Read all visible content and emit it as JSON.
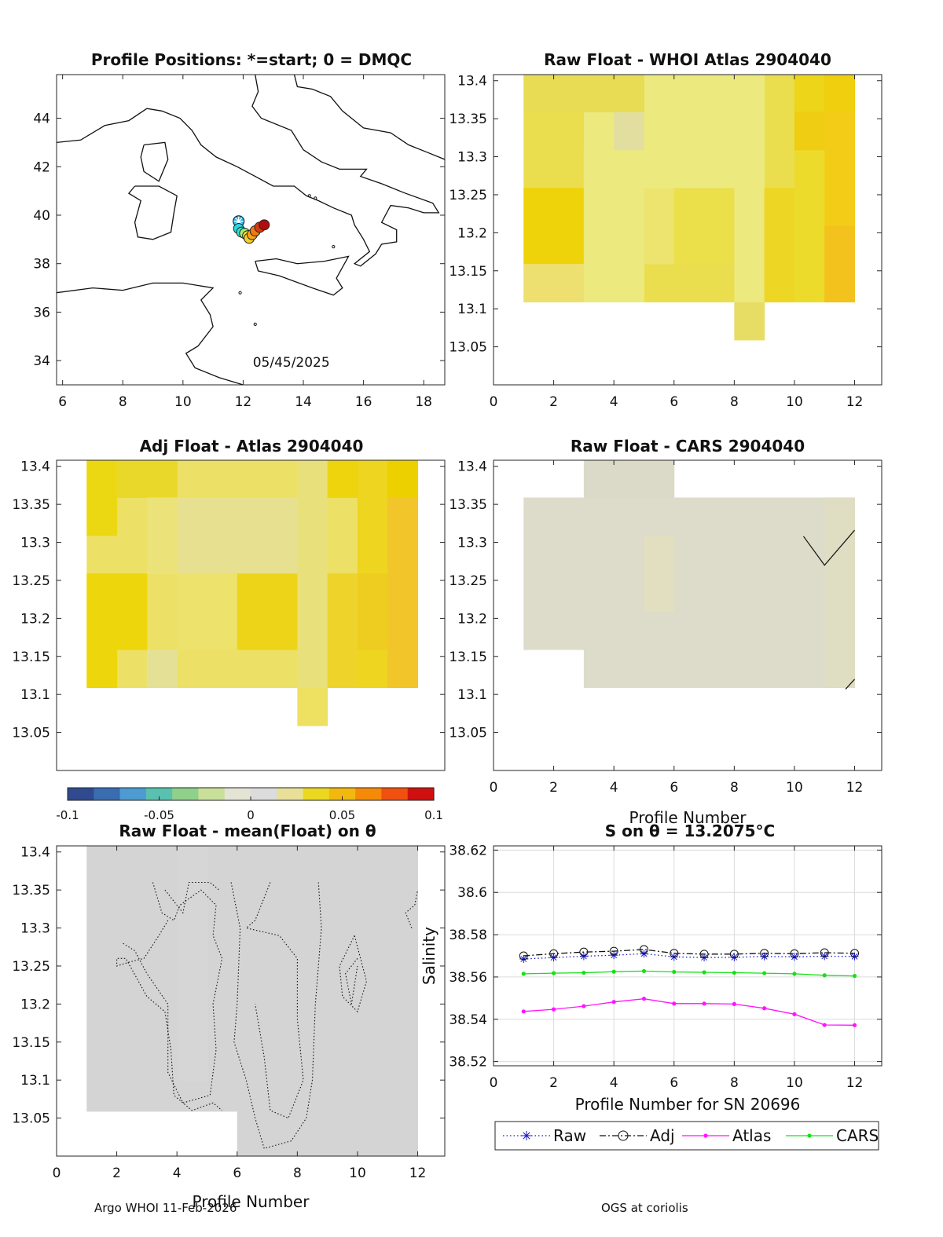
{
  "figure": {
    "footer_left": "Argo WHOI 11-Feb-2026",
    "footer_right": "OGS at coriolis",
    "colorbar": {
      "ticks": [
        "-0.1",
        "-0.05",
        "0",
        "0.05",
        "0.1"
      ],
      "range": [
        -0.1,
        0.1
      ]
    }
  },
  "chart_data": [
    {
      "id": "map",
      "type": "scatter",
      "title": "Profile Positions: *=start; 0 = DMQC",
      "annotation": "05/45/2025",
      "xlim": [
        5.8,
        18.7
      ],
      "ylim": [
        33,
        45.8
      ],
      "xticks": [
        "6",
        "8",
        "10",
        "12",
        "14",
        "16",
        "18"
      ],
      "yticks": [
        "34",
        "36",
        "38",
        "40",
        "42",
        "44"
      ],
      "points": [
        {
          "lon": 11.85,
          "lat": 39.75,
          "color": "#2ab4ee",
          "marker": "star"
        },
        {
          "lon": 11.85,
          "lat": 39.45,
          "color": "#22d8e6"
        },
        {
          "lon": 11.95,
          "lat": 39.3,
          "color": "#3fe0c8"
        },
        {
          "lon": 12.05,
          "lat": 39.25,
          "color": "#9ef070"
        },
        {
          "lon": 12.15,
          "lat": 39.15,
          "color": "#f5e32a"
        },
        {
          "lon": 12.2,
          "lat": 39.05,
          "color": "#f8cf22"
        },
        {
          "lon": 12.3,
          "lat": 39.2,
          "color": "#f7a21c"
        },
        {
          "lon": 12.4,
          "lat": 39.35,
          "color": "#f07a12"
        },
        {
          "lon": 12.55,
          "lat": 39.5,
          "color": "#d83a0e"
        },
        {
          "lon": 12.7,
          "lat": 39.6,
          "color": "#b00e0e"
        }
      ]
    },
    {
      "id": "raw_atlas",
      "type": "heatmap",
      "title": "Raw Float - WHOI Atlas  2904040",
      "xlim": [
        0,
        12.9
      ],
      "ylim": [
        13.0,
        13.408
      ],
      "xticks": [
        "0",
        "2",
        "4",
        "6",
        "8",
        "10",
        "12"
      ],
      "yticks": [
        "13.05",
        "13.1",
        "13.15",
        "13.2",
        "13.25",
        "13.3",
        "13.35",
        "13.4"
      ]
    },
    {
      "id": "adj_atlas",
      "type": "heatmap",
      "title": "Adj Float - Atlas  2904040",
      "xlim": [
        0,
        12.9
      ],
      "ylim": [
        13.0,
        13.408
      ],
      "xticks": [],
      "yticks": [
        "13.05",
        "13.1",
        "13.15",
        "13.2",
        "13.25",
        "13.3",
        "13.35",
        "13.4"
      ]
    },
    {
      "id": "raw_cars",
      "type": "heatmap",
      "title": "Raw Float - CARS  2904040",
      "xlabel": "Profile Number",
      "xlim": [
        0,
        12.9
      ],
      "ylim": [
        13.0,
        13.408
      ],
      "xticks": [
        "0",
        "2",
        "4",
        "6",
        "8",
        "10",
        "12"
      ],
      "yticks": [
        "13.05",
        "13.1",
        "13.15",
        "13.2",
        "13.25",
        "13.3",
        "13.35",
        "13.4"
      ]
    },
    {
      "id": "mean_anom",
      "type": "heatmap",
      "title": "Raw Float - mean(Float) on θ",
      "xlabel": "Profile Number",
      "xlim": [
        0,
        12.9
      ],
      "ylim": [
        13.0,
        13.408
      ],
      "xticks": [
        "0",
        "2",
        "4",
        "6",
        "8",
        "10",
        "12"
      ],
      "yticks": [
        "13.05",
        "13.1",
        "13.15",
        "13.2",
        "13.25",
        "13.3",
        "13.35",
        "13.4"
      ]
    },
    {
      "id": "salinity",
      "type": "line",
      "title": "S on θ = 13.2075°C",
      "xlabel": "Profile Number for SN 20696",
      "ylabel": "Salinity",
      "xlim": [
        0,
        12.9
      ],
      "ylim": [
        38.518,
        38.622
      ],
      "xticks": [
        "0",
        "2",
        "4",
        "6",
        "8",
        "10",
        "12"
      ],
      "yticks": [
        "38.52",
        "38.54",
        "38.56",
        "38.58",
        "38.6",
        "38.62"
      ],
      "grid": true,
      "legend": "bottom",
      "x": [
        1,
        2,
        3,
        4,
        5,
        6,
        7,
        8,
        9,
        10,
        11,
        12
      ],
      "series": [
        {
          "name": "Raw",
          "color": "#1a1acc",
          "style": "dotted",
          "marker": "star",
          "values": [
            38.5685,
            38.5692,
            38.5698,
            38.5703,
            38.571,
            38.5695,
            38.5692,
            38.5693,
            38.5697,
            38.5695,
            38.5698,
            38.5697
          ]
        },
        {
          "name": "Adj",
          "color": "#111111",
          "style": "dashdot",
          "marker": "circle",
          "values": [
            38.57,
            38.571,
            38.5718,
            38.5722,
            38.573,
            38.5712,
            38.5708,
            38.5708,
            38.5712,
            38.571,
            38.5715,
            38.5712
          ]
        },
        {
          "name": "Atlas",
          "color": "#ff14ff",
          "style": "solid",
          "marker": "dot",
          "values": [
            38.5437,
            38.5447,
            38.5462,
            38.5482,
            38.5497,
            38.5474,
            38.5474,
            38.5472,
            38.5452,
            38.5424,
            38.5373,
            38.5372
          ]
        },
        {
          "name": "CARS",
          "color": "#16e016",
          "style": "solid",
          "marker": "dot",
          "values": [
            38.5615,
            38.5618,
            38.562,
            38.5625,
            38.5628,
            38.5624,
            38.5622,
            38.562,
            38.5618,
            38.5615,
            38.5608,
            38.5605
          ]
        }
      ]
    }
  ]
}
